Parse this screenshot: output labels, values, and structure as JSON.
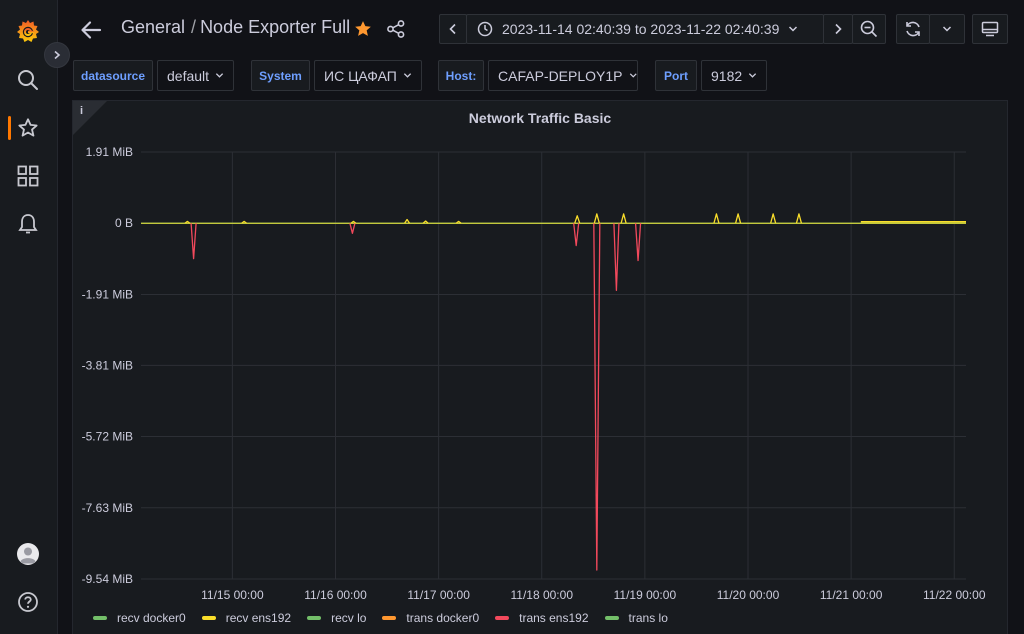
{
  "breadcrumb": {
    "folder": "General",
    "separator": "/",
    "dashboard": "Node Exporter Full"
  },
  "time_picker": {
    "range_text": "2023-11-14 02:40:39 to 2023-11-22 02:40:39"
  },
  "variables": [
    {
      "label": "datasource",
      "value": "default"
    },
    {
      "label": "System",
      "value": "ИС ЦАФАП"
    },
    {
      "label": "Host:",
      "value": "CAFAP-DEPLOY1P"
    },
    {
      "label": "Port",
      "value": "9182"
    }
  ],
  "colors": {
    "accent": "#ff7800",
    "link": "#6e9fff",
    "green": "#73bf69",
    "yellow": "#fade2a",
    "orange": "#ff9830",
    "red": "#f2495c"
  },
  "panel": {
    "title": "Network Traffic Basic",
    "info_glyph": "i"
  },
  "chart_data": {
    "type": "line",
    "title": "Network Traffic Basic",
    "y_ticks": [
      "1.91 MiB",
      "0 B",
      "-1.91 MiB",
      "-3.81 MiB",
      "-5.72 MiB",
      "-7.63 MiB",
      "-9.54 MiB"
    ],
    "y_tick_values": [
      1.91,
      0,
      -1.91,
      -3.81,
      -5.72,
      -7.63,
      -9.54
    ],
    "ylim": [
      -9.54,
      1.91
    ],
    "y_unit": "MiB",
    "x_ticks": [
      "11/15 00:00",
      "11/16 00:00",
      "11/17 00:00",
      "11/18 00:00",
      "11/19 00:00",
      "11/20 00:00",
      "11/21 00:00",
      "11/22 00:00"
    ],
    "x_tick_days": [
      0.886,
      1.886,
      2.886,
      3.886,
      4.886,
      5.886,
      6.886,
      7.886
    ],
    "xlim_days": [
      0,
      8
    ],
    "grid": true,
    "legend_position": "bottom-left",
    "series": [
      {
        "name": "recv docker0",
        "color": "#73bf69",
        "points": []
      },
      {
        "name": "recv ens192",
        "color": "#fade2a",
        "points": [
          [
            4.23,
            0.2
          ],
          [
            4.42,
            0.25
          ],
          [
            4.68,
            0.25
          ],
          [
            5.58,
            0.25
          ],
          [
            5.79,
            0.25
          ],
          [
            6.13,
            0.25
          ],
          [
            6.38,
            0.25
          ],
          [
            2.58,
            0.1
          ],
          [
            2.76,
            0.06
          ],
          [
            3.08,
            0.05
          ],
          [
            2.06,
            0.05
          ],
          [
            1.0,
            0.05
          ],
          [
            0.45,
            0.05
          ]
        ]
      },
      {
        "name": "recv lo",
        "color": "#73bf69",
        "points": []
      },
      {
        "name": "trans docker0",
        "color": "#ff9830",
        "points": []
      },
      {
        "name": "trans ens192",
        "color": "#f2495c",
        "points": [
          [
            0.51,
            -0.95
          ],
          [
            2.05,
            -0.27
          ],
          [
            4.22,
            -0.6
          ],
          [
            4.42,
            -9.3
          ],
          [
            4.61,
            -1.8
          ],
          [
            4.82,
            -1.0
          ]
        ]
      },
      {
        "name": "trans lo",
        "color": "#73bf69",
        "points": []
      }
    ]
  }
}
